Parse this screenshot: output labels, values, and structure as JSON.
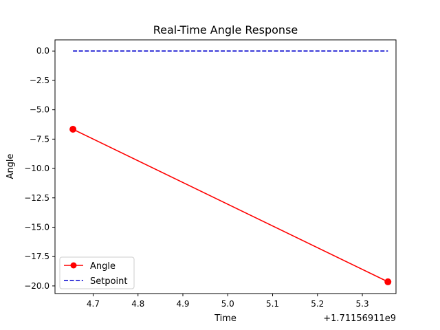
{
  "chart_data": {
    "type": "line",
    "title": "Real-Time Angle Response",
    "xlabel": "Time",
    "ylabel": "Angle",
    "x_offset_label": "+1.71156911e9",
    "xlim": [
      4.615,
      5.375
    ],
    "ylim": [
      -20.65,
      0.95
    ],
    "xticks": [
      4.7,
      4.8,
      4.9,
      5.0,
      5.1,
      5.2,
      5.3
    ],
    "xtick_labels": [
      "4.7",
      "4.8",
      "4.9",
      "5.0",
      "5.1",
      "5.2",
      "5.3"
    ],
    "yticks": [
      0.0,
      -2.5,
      -5.0,
      -7.5,
      -10.0,
      -12.5,
      -15.0,
      -17.5,
      -20.0
    ],
    "ytick_labels": [
      "0.0",
      "−2.5",
      "−5.0",
      "−7.5",
      "−10.0",
      "−12.5",
      "−15.0",
      "−17.5",
      "−20.0"
    ],
    "grid": false,
    "legend_position": "lower-left",
    "series": [
      {
        "name": "Angle",
        "style": "solid-with-circle-markers",
        "color": "#ff0000",
        "x": [
          4.655,
          5.357
        ],
        "y": [
          -6.66,
          -19.65
        ]
      },
      {
        "name": "Setpoint",
        "style": "dashed",
        "color": "#0000cd",
        "x": [
          4.655,
          5.357
        ],
        "y": [
          0.0,
          0.0
        ]
      }
    ]
  }
}
